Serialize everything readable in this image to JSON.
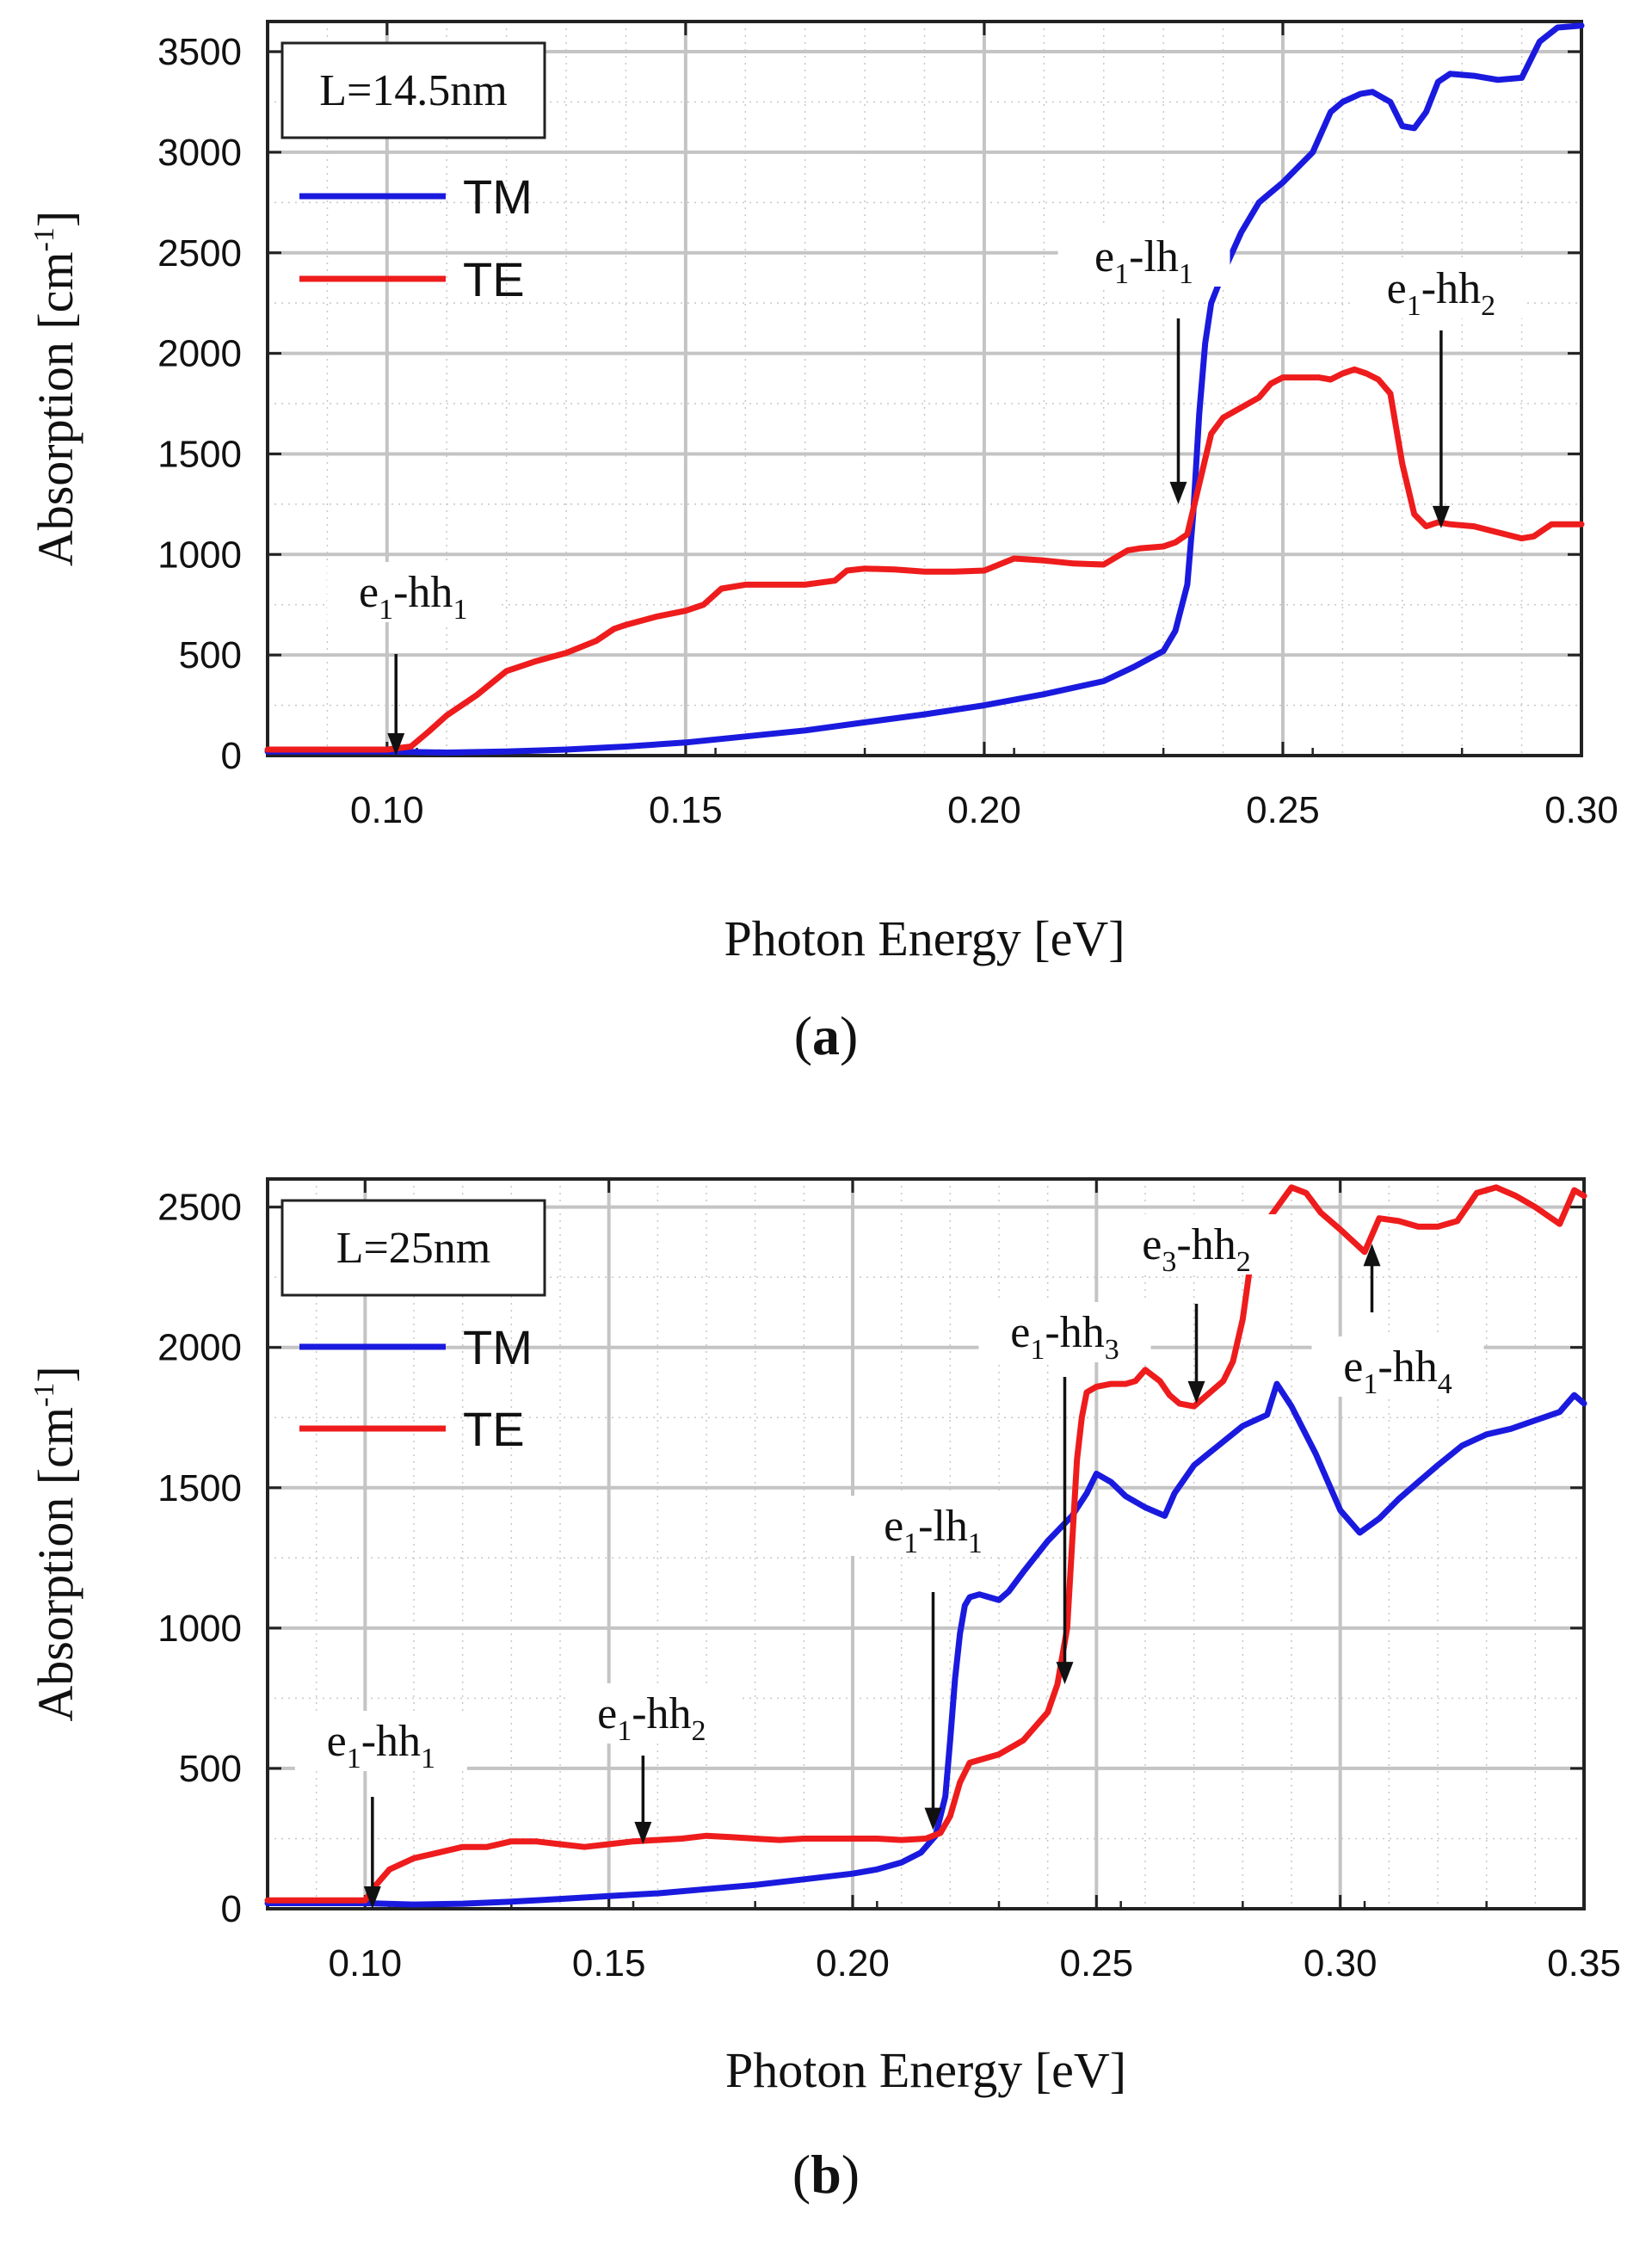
{
  "chart_data": [
    {
      "type": "line",
      "panel": "(a)",
      "panel_letter": "a",
      "xlabel": "Photon Energy [eV]",
      "ylabel_main": "Absorption [cm",
      "ylabel_sup": "-1",
      "ylabel_close": "]",
      "xlim": [
        0.08,
        0.3
      ],
      "ylim": [
        0,
        3650
      ],
      "xticks": [
        0.1,
        0.15,
        0.2,
        0.25,
        0.3
      ],
      "xtick_labels": [
        "0.10",
        "0.15",
        "0.20",
        "0.25",
        "0.30"
      ],
      "yticks": [
        0,
        500,
        1000,
        1500,
        2000,
        2500,
        3000,
        3500
      ],
      "ytick_labels": [
        "0",
        "500",
        "1000",
        "1500",
        "2000",
        "2500",
        "3000",
        "3500"
      ],
      "grid": true,
      "box_label": "L=14.5nm",
      "legend": [
        "TM",
        "TE"
      ],
      "legend_position": "top-left",
      "series": [
        {
          "name": "TM",
          "color": "#1a1adf",
          "x": [
            0.08,
            0.1,
            0.11,
            0.12,
            0.13,
            0.14,
            0.15,
            0.16,
            0.17,
            0.18,
            0.19,
            0.2,
            0.21,
            0.22,
            0.225,
            0.23,
            0.232,
            0.234,
            0.235,
            0.236,
            0.237,
            0.238,
            0.24,
            0.243,
            0.246,
            0.248,
            0.25,
            0.255,
            0.258,
            0.26,
            0.263,
            0.265,
            0.268,
            0.27,
            0.272,
            0.274,
            0.276,
            0.278,
            0.282,
            0.286,
            0.29,
            0.293,
            0.296,
            0.3
          ],
          "values": [
            20,
            20,
            15,
            20,
            30,
            45,
            65,
            95,
            125,
            165,
            205,
            250,
            305,
            370,
            440,
            520,
            620,
            850,
            1200,
            1700,
            2050,
            2250,
            2400,
            2600,
            2750,
            2800,
            2850,
            3000,
            3200,
            3250,
            3290,
            3300,
            3250,
            3130,
            3120,
            3200,
            3350,
            3390,
            3380,
            3360,
            3370,
            3550,
            3620,
            3630
          ]
        },
        {
          "name": "TE",
          "color": "#ee1c1c",
          "x": [
            0.08,
            0.1,
            0.104,
            0.107,
            0.11,
            0.115,
            0.12,
            0.125,
            0.13,
            0.135,
            0.138,
            0.14,
            0.145,
            0.15,
            0.153,
            0.156,
            0.16,
            0.165,
            0.17,
            0.175,
            0.177,
            0.18,
            0.185,
            0.19,
            0.195,
            0.2,
            0.205,
            0.21,
            0.215,
            0.22,
            0.224,
            0.226,
            0.23,
            0.232,
            0.234,
            0.236,
            0.238,
            0.24,
            0.243,
            0.246,
            0.248,
            0.25,
            0.253,
            0.256,
            0.258,
            0.26,
            0.262,
            0.264,
            0.266,
            0.268,
            0.27,
            0.272,
            0.274,
            0.276,
            0.278,
            0.282,
            0.286,
            0.29,
            0.292,
            0.295,
            0.3
          ],
          "values": [
            30,
            30,
            45,
            120,
            200,
            300,
            420,
            470,
            510,
            570,
            630,
            650,
            690,
            720,
            750,
            830,
            850,
            850,
            850,
            870,
            920,
            930,
            925,
            915,
            915,
            920,
            980,
            970,
            955,
            950,
            1020,
            1030,
            1040,
            1060,
            1100,
            1350,
            1600,
            1680,
            1730,
            1780,
            1850,
            1880,
            1880,
            1880,
            1870,
            1900,
            1920,
            1900,
            1870,
            1800,
            1450,
            1200,
            1140,
            1160,
            1150,
            1140,
            1110,
            1080,
            1090,
            1150,
            1150
          ]
        }
      ],
      "annotations": [
        {
          "text": "e",
          "sub1": "1",
          "mid": "-hh",
          "sub2": "1",
          "x": 0.1015,
          "y": 0,
          "direction": "down"
        },
        {
          "text": "e",
          "sub1": "1",
          "mid": "-lh",
          "sub2": "1",
          "x": 0.2325,
          "y": 1250,
          "direction": "down"
        },
        {
          "text": "e",
          "sub1": "1",
          "mid": "-hh",
          "sub2": "2",
          "x": 0.2765,
          "y": 1130,
          "direction": "down"
        }
      ]
    },
    {
      "type": "line",
      "panel": "(b)",
      "panel_letter": "b",
      "xlabel": "Photon Energy [eV]",
      "ylabel_main": "Absorption [cm",
      "ylabel_sup": "-1",
      "ylabel_close": "]",
      "xlim": [
        0.08,
        0.35
      ],
      "ylim": [
        0,
        2600
      ],
      "xticks": [
        0.1,
        0.15,
        0.2,
        0.25,
        0.3,
        0.35
      ],
      "xtick_labels": [
        "0.10",
        "0.15",
        "0.20",
        "0.25",
        "0.30",
        "0.35"
      ],
      "yticks": [
        0,
        500,
        1000,
        1500,
        2000,
        2500
      ],
      "ytick_labels": [
        "0",
        "500",
        "1000",
        "1500",
        "2000",
        "2500"
      ],
      "grid": true,
      "box_label": "L=25nm",
      "legend": [
        "TM",
        "TE"
      ],
      "legend_position": "top-left",
      "series": [
        {
          "name": "TM",
          "color": "#1a1adf",
          "x": [
            0.08,
            0.1,
            0.11,
            0.12,
            0.13,
            0.14,
            0.15,
            0.16,
            0.17,
            0.18,
            0.19,
            0.2,
            0.205,
            0.21,
            0.214,
            0.217,
            0.219,
            0.22,
            0.221,
            0.222,
            0.223,
            0.224,
            0.226,
            0.228,
            0.23,
            0.232,
            0.235,
            0.24,
            0.245,
            0.248,
            0.25,
            0.253,
            0.256,
            0.26,
            0.264,
            0.266,
            0.27,
            0.275,
            0.28,
            0.285,
            0.287,
            0.29,
            0.295,
            0.3,
            0.304,
            0.308,
            0.312,
            0.316,
            0.32,
            0.325,
            0.33,
            0.335,
            0.34,
            0.345,
            0.348,
            0.35
          ],
          "values": [
            20,
            20,
            15,
            18,
            25,
            35,
            45,
            55,
            70,
            85,
            105,
            125,
            140,
            165,
            200,
            260,
            400,
            600,
            820,
            980,
            1080,
            1110,
            1120,
            1110,
            1100,
            1130,
            1200,
            1310,
            1400,
            1480,
            1550,
            1520,
            1470,
            1430,
            1400,
            1480,
            1580,
            1650,
            1720,
            1760,
            1870,
            1790,
            1620,
            1420,
            1340,
            1390,
            1460,
            1520,
            1580,
            1650,
            1690,
            1710,
            1740,
            1770,
            1830,
            1800
          ]
        },
        {
          "name": "TE",
          "color": "#ee1c1c",
          "x": [
            0.08,
            0.1,
            0.102,
            0.105,
            0.11,
            0.115,
            0.12,
            0.125,
            0.13,
            0.135,
            0.14,
            0.145,
            0.15,
            0.155,
            0.16,
            0.165,
            0.17,
            0.175,
            0.18,
            0.185,
            0.19,
            0.195,
            0.2,
            0.205,
            0.21,
            0.215,
            0.218,
            0.22,
            0.222,
            0.224,
            0.226,
            0.23,
            0.235,
            0.24,
            0.242,
            0.244,
            0.245,
            0.246,
            0.247,
            0.248,
            0.25,
            0.253,
            0.256,
            0.258,
            0.26,
            0.263,
            0.265,
            0.267,
            0.27,
            0.272,
            0.274,
            0.276,
            0.278,
            0.28,
            0.282,
            0.285,
            0.29,
            0.293,
            0.296,
            0.3,
            0.305,
            0.308,
            0.312,
            0.316,
            0.32,
            0.324,
            0.328,
            0.332,
            0.336,
            0.34,
            0.345,
            0.348,
            0.35
          ],
          "values": [
            30,
            30,
            80,
            140,
            180,
            200,
            220,
            220,
            240,
            240,
            230,
            220,
            230,
            240,
            245,
            250,
            260,
            255,
            250,
            245,
            250,
            250,
            250,
            250,
            245,
            250,
            270,
            330,
            450,
            520,
            530,
            550,
            600,
            700,
            800,
            1000,
            1300,
            1600,
            1750,
            1840,
            1860,
            1870,
            1870,
            1880,
            1920,
            1880,
            1830,
            1800,
            1790,
            1820,
            1850,
            1880,
            1950,
            2100,
            2350,
            2450,
            2570,
            2550,
            2480,
            2420,
            2340,
            2460,
            2450,
            2430,
            2430,
            2450,
            2550,
            2570,
            2540,
            2500,
            2440,
            2560,
            2540
          ]
        }
      ],
      "annotations": [
        {
          "text": "e",
          "sub1": "1",
          "mid": "-hh",
          "sub2": "1",
          "x": 0.1015,
          "y": 0,
          "direction": "down"
        },
        {
          "text": "e",
          "sub1": "1",
          "mid": "-hh",
          "sub2": "2",
          "x": 0.157,
          "y": 230,
          "direction": "down"
        },
        {
          "text": "e",
          "sub1": "1",
          "mid": "-lh",
          "sub2": "1",
          "x": 0.2165,
          "y": 280,
          "direction": "down"
        },
        {
          "text": "e",
          "sub1": "1",
          "mid": "-hh",
          "sub2": "3",
          "x": 0.2435,
          "y": 800,
          "direction": "down"
        },
        {
          "text": "e",
          "sub1": "3",
          "mid": "-hh",
          "sub2": "2",
          "x": 0.2705,
          "y": 1800,
          "direction": "down"
        },
        {
          "text": "e",
          "sub1": "1",
          "mid": "-hh",
          "sub2": "4",
          "x": 0.3065,
          "y": 2400,
          "direction": "up"
        }
      ]
    }
  ]
}
